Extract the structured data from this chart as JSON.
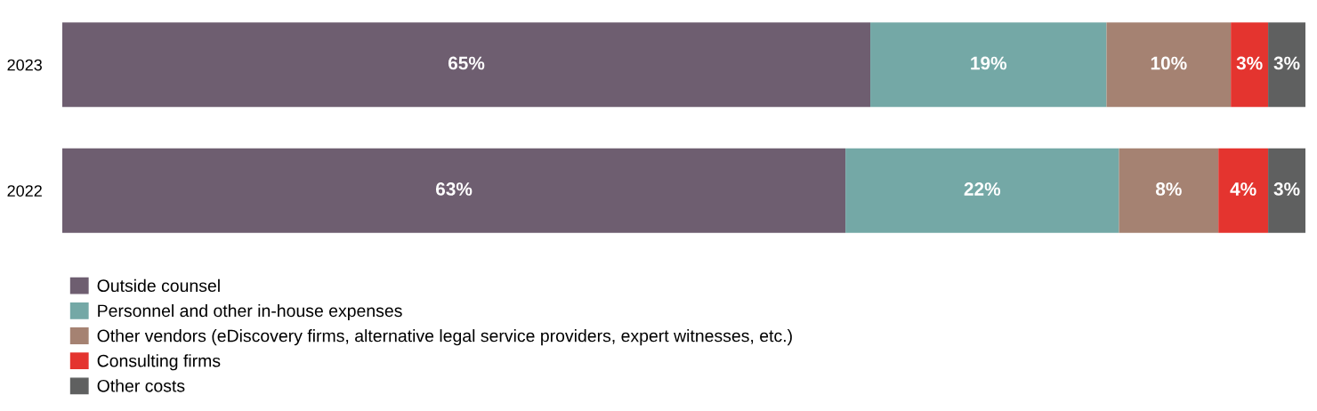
{
  "chart_data": {
    "type": "bar",
    "orientation": "horizontal",
    "stacked": true,
    "categories": [
      "2023",
      "2022"
    ],
    "xlim": [
      0,
      100
    ],
    "tick_labels": "y",
    "grid": false,
    "legend": "bottom left",
    "series": [
      {
        "name": "Outside counsel",
        "color": "#6e5e70",
        "values": [
          65,
          63
        ],
        "value_labels": [
          "65%",
          "63%"
        ]
      },
      {
        "name": "Personnel and other in-house expenses",
        "color": "#74a8a6",
        "values": [
          19,
          22
        ],
        "value_labels": [
          "19%",
          "22%"
        ]
      },
      {
        "name": "Other vendors (eDiscovery firms, alternative legal service providers, expert witnesses, etc.)",
        "color": "#a58272",
        "values": [
          10,
          8
        ],
        "value_labels": [
          "10%",
          "8%"
        ]
      },
      {
        "name": "Consulting firms",
        "color": "#e4342f",
        "values": [
          3,
          4
        ],
        "value_labels": [
          "3%",
          "4%"
        ]
      },
      {
        "name": "Other costs",
        "color": "#5f6060",
        "values": [
          3,
          3
        ],
        "value_labels": [
          "3%",
          "3%"
        ]
      }
    ]
  }
}
